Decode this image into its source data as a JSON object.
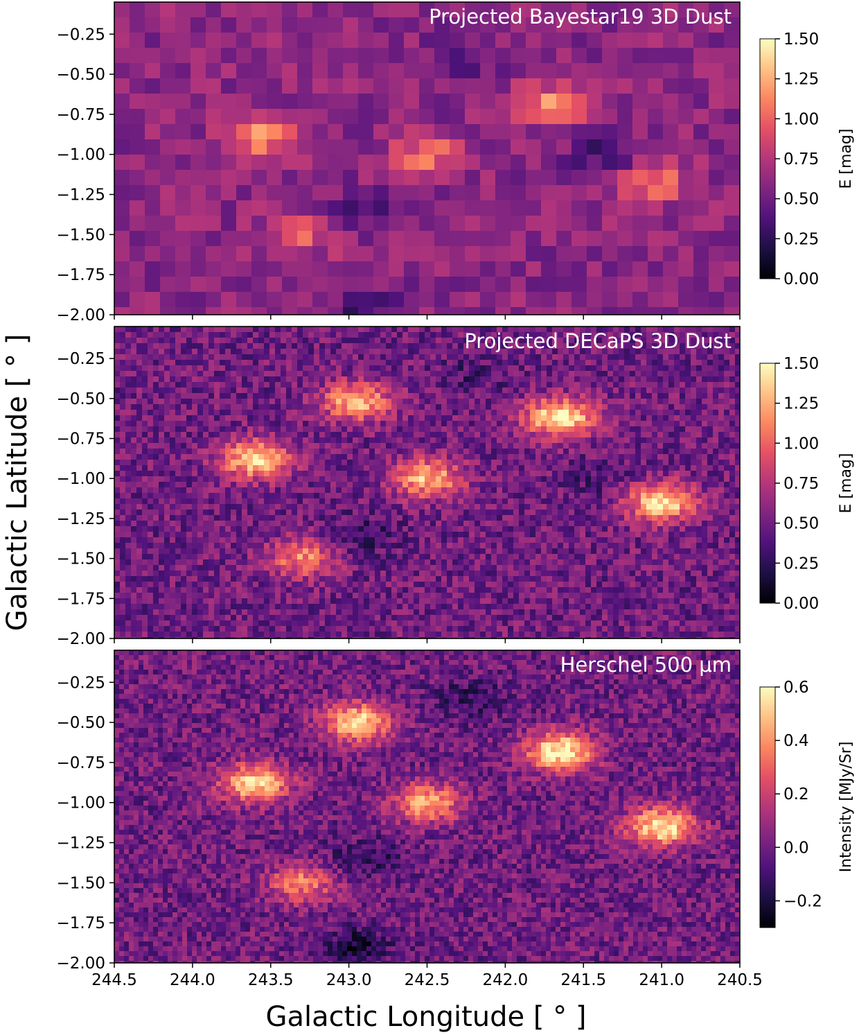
{
  "figure": {
    "xlabel": "Galactic Longitude [ ° ]",
    "ylabel": "Galactic Latitude [ ° ]"
  },
  "chart_data": [
    {
      "type": "heatmap",
      "title": "Projected Bayestar19 3D Dust",
      "xlabel": "Galactic Longitude [ ° ]",
      "ylabel": "Galactic Latitude [ ° ]",
      "xlim": [
        244.5,
        240.5
      ],
      "ylim": [
        -2.0,
        -0.05
      ],
      "xticks": [
        244.5,
        244.0,
        243.5,
        243.0,
        242.5,
        242.0,
        241.5,
        241.0,
        240.5
      ],
      "xtick_labels_shown": false,
      "yticks": [
        "−0.25",
        "−0.50",
        "−0.75",
        "−1.00",
        "−1.25",
        "−1.50",
        "−1.75",
        "−2.00"
      ],
      "colorbar": {
        "label": "E [mag]",
        "range": [
          0.0,
          1.5
        ],
        "ticks": [
          "0.00",
          "0.25",
          "0.50",
          "0.75",
          "1.00",
          "1.25",
          "1.50"
        ],
        "colormap": "magma"
      },
      "features": [
        {
          "l": 243.55,
          "b": -0.9,
          "level": 1.15
        },
        {
          "l": 242.5,
          "b": -1.0,
          "level": 1.05
        },
        {
          "l": 241.7,
          "b": -0.68,
          "level": 1.15
        },
        {
          "l": 241.05,
          "b": -1.18,
          "level": 1.1
        },
        {
          "l": 243.3,
          "b": -1.5,
          "level": 0.95
        },
        {
          "l": 242.9,
          "b": -1.35,
          "level": 0.3
        },
        {
          "l": 242.3,
          "b": -0.4,
          "level": 0.35
        },
        {
          "l": 241.4,
          "b": -1.0,
          "level": 0.35
        },
        {
          "l": 242.9,
          "b": -1.95,
          "level": 0.3
        }
      ],
      "background_level": 0.6
    },
    {
      "type": "heatmap",
      "title": "Projected DECaPS 3D Dust",
      "xlabel": "Galactic Longitude [ ° ]",
      "ylabel": "Galactic Latitude [ ° ]",
      "xlim": [
        244.5,
        240.5
      ],
      "ylim": [
        -2.0,
        -0.05
      ],
      "xticks": [
        244.5,
        244.0,
        243.5,
        243.0,
        242.5,
        242.0,
        241.5,
        241.0,
        240.5
      ],
      "xtick_labels_shown": false,
      "yticks": [
        "−0.25",
        "−0.50",
        "−0.75",
        "−1.00",
        "−1.25",
        "−1.50",
        "−1.75",
        "−2.00"
      ],
      "colorbar": {
        "label": "E [mag]",
        "range": [
          0.0,
          1.5
        ],
        "ticks": [
          "0.00",
          "0.25",
          "0.50",
          "0.75",
          "1.00",
          "1.25",
          "1.50"
        ],
        "colormap": "magma"
      },
      "features": [
        {
          "l": 243.6,
          "b": -0.88,
          "level": 1.4
        },
        {
          "l": 242.5,
          "b": -1.0,
          "level": 1.3
        },
        {
          "l": 241.65,
          "b": -0.62,
          "level": 1.5
        },
        {
          "l": 241.0,
          "b": -1.15,
          "level": 1.45
        },
        {
          "l": 242.95,
          "b": -0.52,
          "level": 1.3
        },
        {
          "l": 243.3,
          "b": -1.5,
          "level": 1.1
        },
        {
          "l": 242.9,
          "b": -1.35,
          "level": 0.3
        },
        {
          "l": 242.2,
          "b": -0.35,
          "level": 0.35
        },
        {
          "l": 241.4,
          "b": -1.0,
          "level": 0.35
        }
      ],
      "background_level": 0.5
    },
    {
      "type": "heatmap",
      "title": "Herschel 500 μm",
      "xlabel": "Galactic Longitude [ ° ]",
      "ylabel": "Galactic Latitude [ ° ]",
      "xlim": [
        244.5,
        240.5
      ],
      "ylim": [
        -2.0,
        -0.05
      ],
      "xticks": [
        "244.5",
        "244.0",
        "243.5",
        "243.0",
        "242.5",
        "242.0",
        "241.5",
        "241.0",
        "240.5"
      ],
      "xtick_labels_shown": true,
      "yticks": [
        "−0.25",
        "−0.50",
        "−0.75",
        "−1.00",
        "−1.25",
        "−1.50",
        "−1.75",
        "−2.00"
      ],
      "colorbar": {
        "label": "Intensity [MJy/Sr]",
        "range": [
          -0.3,
          0.6
        ],
        "ticks": [
          "−0.2",
          "0.0",
          "0.2",
          "0.4",
          "0.6"
        ],
        "colormap": "magma"
      },
      "features": [
        {
          "l": 243.6,
          "b": -0.88,
          "level": 0.55
        },
        {
          "l": 242.5,
          "b": -1.0,
          "level": 0.45
        },
        {
          "l": 241.65,
          "b": -0.68,
          "level": 0.6
        },
        {
          "l": 241.0,
          "b": -1.15,
          "level": 0.58
        },
        {
          "l": 242.95,
          "b": -0.5,
          "level": 0.55
        },
        {
          "l": 243.3,
          "b": -1.5,
          "level": 0.35
        },
        {
          "l": 242.9,
          "b": -1.35,
          "level": -0.15
        },
        {
          "l": 242.2,
          "b": -0.35,
          "level": -0.15
        },
        {
          "l": 242.95,
          "b": -1.9,
          "level": -0.2
        }
      ],
      "background_level": 0.0
    }
  ]
}
